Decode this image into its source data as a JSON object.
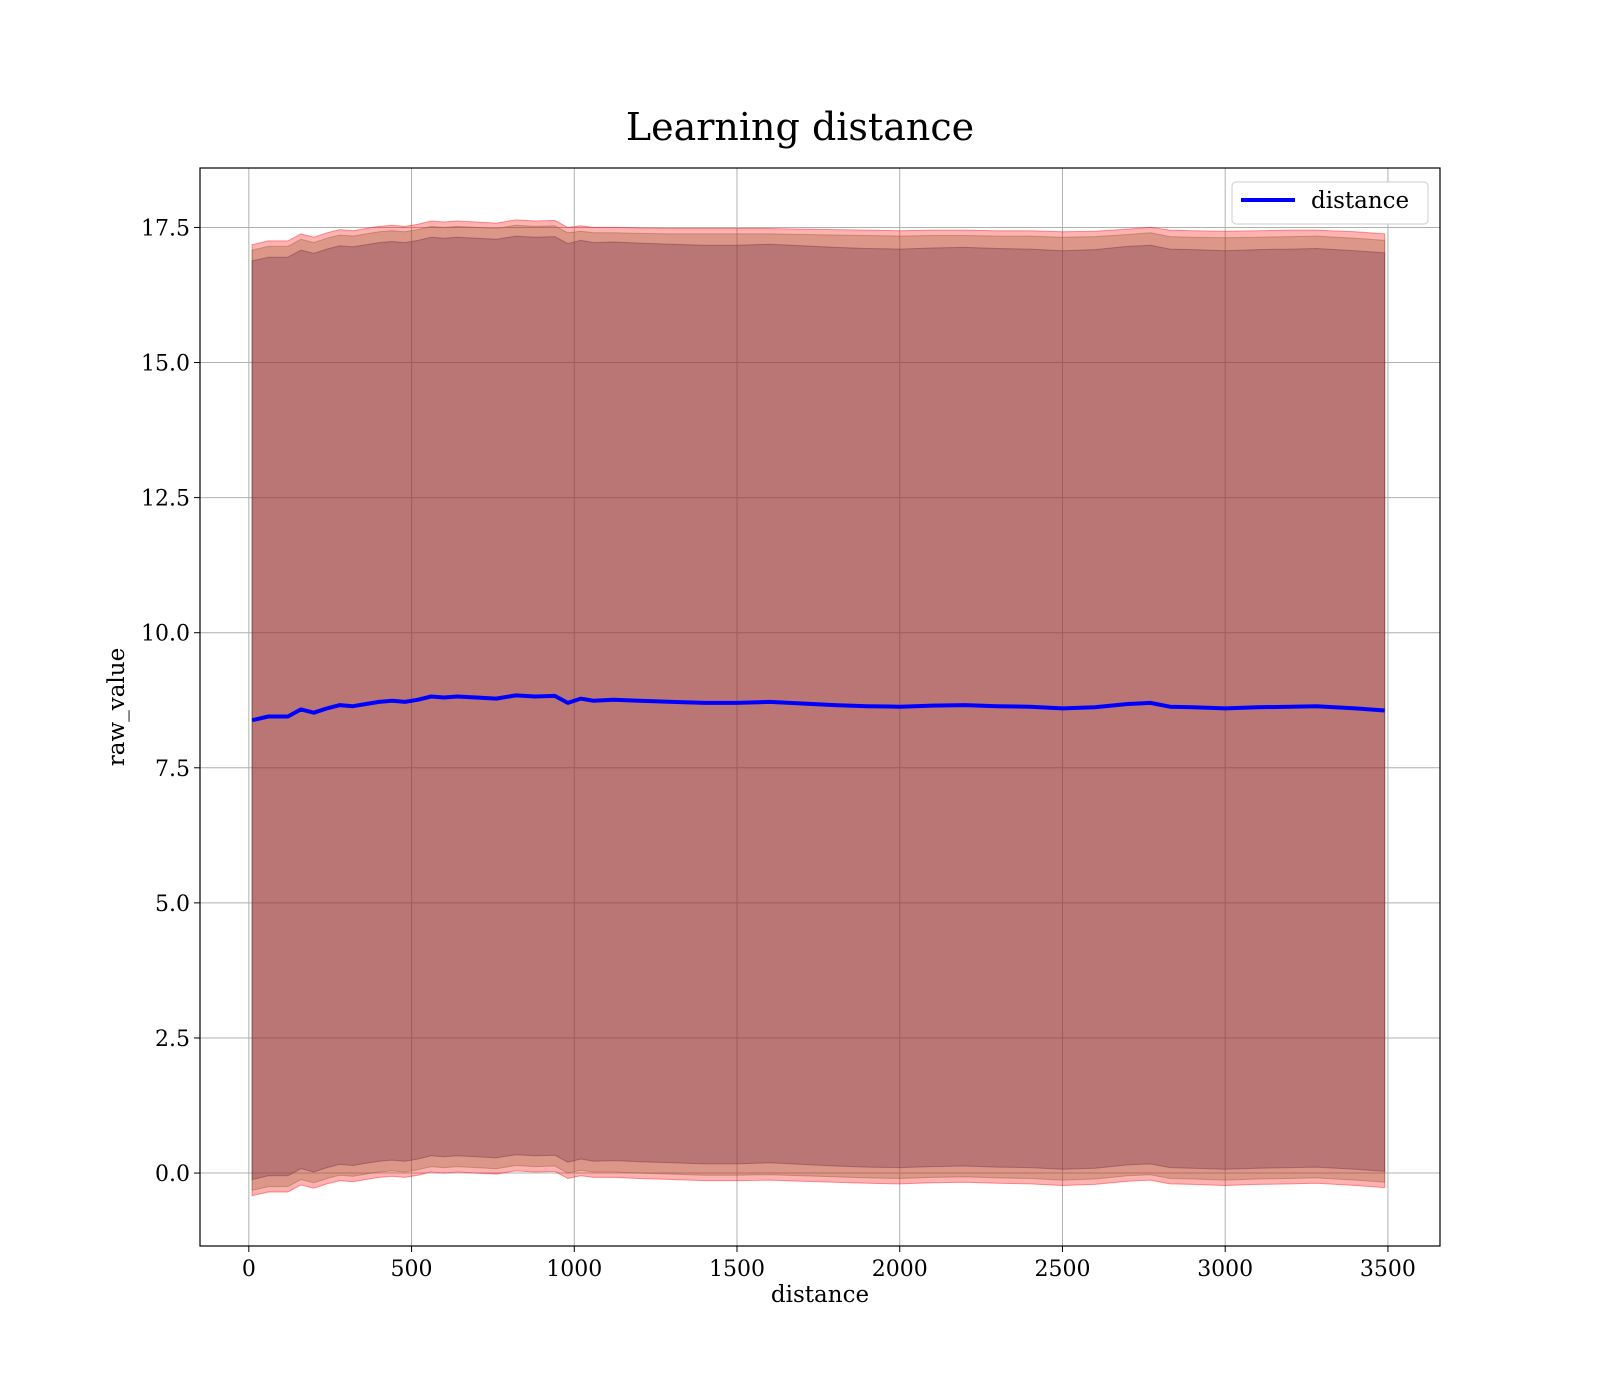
{
  "chart_data": {
    "type": "line",
    "title": "Learning distance",
    "xlabel": "distance",
    "ylabel": "raw_value",
    "xlim": [
      -150,
      3660
    ],
    "ylim": [
      -1.35,
      18.6
    ],
    "xticks": [
      0,
      500,
      1000,
      1500,
      2000,
      2500,
      3000,
      3500
    ],
    "yticks": [
      0.0,
      2.5,
      5.0,
      7.5,
      10.0,
      12.5,
      15.0,
      17.5
    ],
    "xtick_labels": [
      "0",
      "500",
      "1000",
      "1500",
      "2000",
      "2500",
      "3000",
      "3500"
    ],
    "ytick_labels": [
      "0.0",
      "2.5",
      "5.0",
      "7.5",
      "10.0",
      "12.5",
      "15.0",
      "17.5"
    ],
    "grid": true,
    "legend_position": "top-right",
    "series": [
      {
        "name": "distance",
        "color": "#0000ff",
        "x": [
          10,
          60,
          120,
          160,
          200,
          240,
          280,
          320,
          360,
          400,
          440,
          480,
          520,
          560,
          600,
          640,
          700,
          760,
          820,
          880,
          940,
          980,
          1020,
          1060,
          1120,
          1200,
          1300,
          1400,
          1500,
          1600,
          1700,
          1800,
          1900,
          2000,
          2100,
          2200,
          2300,
          2400,
          2500,
          2600,
          2700,
          2770,
          2830,
          2900,
          3000,
          3100,
          3200,
          3280,
          3400,
          3490
        ],
        "y": [
          8.38,
          8.45,
          8.45,
          8.58,
          8.52,
          8.6,
          8.66,
          8.64,
          8.68,
          8.72,
          8.74,
          8.72,
          8.76,
          8.82,
          8.8,
          8.82,
          8.8,
          8.78,
          8.84,
          8.82,
          8.83,
          8.7,
          8.78,
          8.74,
          8.76,
          8.74,
          8.72,
          8.7,
          8.7,
          8.72,
          8.69,
          8.66,
          8.64,
          8.63,
          8.65,
          8.66,
          8.64,
          8.63,
          8.6,
          8.62,
          8.68,
          8.7,
          8.63,
          8.62,
          8.6,
          8.62,
          8.63,
          8.64,
          8.6,
          8.56
        ]
      }
    ],
    "bands": [
      {
        "color": "#ff0000",
        "x": [
          10,
          60,
          120,
          160,
          200,
          240,
          280,
          320,
          360,
          400,
          440,
          480,
          520,
          560,
          600,
          640,
          700,
          760,
          820,
          880,
          940,
          980,
          1020,
          1060,
          1120,
          1200,
          1300,
          1400,
          1500,
          1600,
          1700,
          1800,
          1900,
          2000,
          2100,
          2200,
          2300,
          2400,
          2500,
          2600,
          2700,
          2770,
          2830,
          2900,
          3000,
          3100,
          3200,
          3280,
          3400,
          3490
        ],
        "upper": [
          17.18,
          17.25,
          17.25,
          17.38,
          17.32,
          17.4,
          17.46,
          17.44,
          17.48,
          17.52,
          17.54,
          17.52,
          17.56,
          17.62,
          17.6,
          17.62,
          17.6,
          17.58,
          17.64,
          17.62,
          17.63,
          17.5,
          17.53,
          17.5,
          17.5,
          17.49,
          17.48,
          17.48,
          17.48,
          17.48,
          17.47,
          17.46,
          17.45,
          17.44,
          17.45,
          17.45,
          17.44,
          17.44,
          17.42,
          17.43,
          17.47,
          17.5,
          17.45,
          17.44,
          17.43,
          17.44,
          17.45,
          17.45,
          17.42,
          17.38
        ],
        "lower": [
          -0.42,
          -0.35,
          -0.35,
          -0.22,
          -0.28,
          -0.2,
          -0.14,
          -0.16,
          -0.12,
          -0.08,
          -0.06,
          -0.08,
          -0.04,
          0.02,
          0.0,
          0.02,
          0.0,
          -0.02,
          0.04,
          0.02,
          0.03,
          -0.1,
          -0.05,
          -0.08,
          -0.08,
          -0.1,
          -0.12,
          -0.14,
          -0.14,
          -0.13,
          -0.15,
          -0.17,
          -0.19,
          -0.2,
          -0.18,
          -0.17,
          -0.19,
          -0.2,
          -0.23,
          -0.21,
          -0.15,
          -0.13,
          -0.2,
          -0.21,
          -0.23,
          -0.21,
          -0.2,
          -0.19,
          -0.23,
          -0.27
        ]
      },
      {
        "color": "#8b5a2b",
        "x": [
          10,
          60,
          120,
          160,
          200,
          240,
          280,
          320,
          360,
          400,
          440,
          480,
          520,
          560,
          600,
          640,
          700,
          760,
          820,
          880,
          940,
          980,
          1020,
          1060,
          1120,
          1200,
          1300,
          1400,
          1500,
          1600,
          1700,
          1800,
          1900,
          2000,
          2100,
          2200,
          2300,
          2400,
          2500,
          2600,
          2700,
          2770,
          2830,
          2900,
          3000,
          3100,
          3200,
          3280,
          3400,
          3490
        ],
        "upper": [
          17.08,
          17.15,
          17.15,
          17.28,
          17.22,
          17.3,
          17.36,
          17.34,
          17.38,
          17.42,
          17.44,
          17.42,
          17.46,
          17.52,
          17.5,
          17.52,
          17.5,
          17.48,
          17.54,
          17.52,
          17.53,
          17.4,
          17.43,
          17.4,
          17.4,
          17.39,
          17.38,
          17.38,
          17.38,
          17.38,
          17.37,
          17.36,
          17.35,
          17.34,
          17.35,
          17.35,
          17.34,
          17.34,
          17.32,
          17.33,
          17.37,
          17.4,
          17.33,
          17.32,
          17.31,
          17.32,
          17.33,
          17.34,
          17.3,
          17.26
        ],
        "lower": [
          -0.32,
          -0.25,
          -0.25,
          -0.12,
          -0.18,
          -0.1,
          -0.04,
          -0.06,
          -0.02,
          0.02,
          0.04,
          0.02,
          0.06,
          0.12,
          0.1,
          0.12,
          0.1,
          0.08,
          0.14,
          0.12,
          0.13,
          0.0,
          0.05,
          0.02,
          0.02,
          0.0,
          -0.02,
          -0.04,
          -0.04,
          -0.03,
          -0.05,
          -0.07,
          -0.09,
          -0.1,
          -0.08,
          -0.07,
          -0.09,
          -0.1,
          -0.13,
          -0.11,
          -0.05,
          -0.03,
          -0.1,
          -0.11,
          -0.13,
          -0.11,
          -0.1,
          -0.09,
          -0.13,
          -0.17
        ]
      },
      {
        "color": "#6a2a45",
        "x": [
          10,
          60,
          120,
          160,
          200,
          240,
          280,
          320,
          360,
          400,
          440,
          480,
          520,
          560,
          600,
          640,
          700,
          760,
          820,
          880,
          940,
          980,
          1020,
          1060,
          1120,
          1200,
          1300,
          1400,
          1500,
          1600,
          1700,
          1800,
          1900,
          2000,
          2100,
          2200,
          2300,
          2400,
          2500,
          2600,
          2700,
          2770,
          2830,
          2900,
          3000,
          3100,
          3200,
          3280,
          3400,
          3490
        ],
        "upper": [
          16.88,
          16.95,
          16.95,
          17.08,
          17.02,
          17.1,
          17.16,
          17.14,
          17.18,
          17.22,
          17.24,
          17.22,
          17.26,
          17.32,
          17.3,
          17.32,
          17.3,
          17.28,
          17.34,
          17.32,
          17.33,
          17.2,
          17.26,
          17.22,
          17.23,
          17.21,
          17.19,
          17.17,
          17.17,
          17.19,
          17.16,
          17.13,
          17.11,
          17.1,
          17.12,
          17.13,
          17.11,
          17.1,
          17.07,
          17.09,
          17.15,
          17.17,
          17.1,
          17.09,
          17.07,
          17.09,
          17.1,
          17.11,
          17.07,
          17.03
        ],
        "lower": [
          -0.12,
          -0.05,
          -0.05,
          0.08,
          0.02,
          0.1,
          0.16,
          0.14,
          0.18,
          0.22,
          0.24,
          0.22,
          0.26,
          0.32,
          0.3,
          0.32,
          0.3,
          0.28,
          0.34,
          0.32,
          0.33,
          0.2,
          0.26,
          0.22,
          0.23,
          0.21,
          0.19,
          0.17,
          0.17,
          0.19,
          0.16,
          0.13,
          0.11,
          0.1,
          0.12,
          0.13,
          0.11,
          0.1,
          0.07,
          0.09,
          0.15,
          0.17,
          0.1,
          0.09,
          0.07,
          0.09,
          0.1,
          0.11,
          0.07,
          0.03
        ]
      }
    ]
  }
}
